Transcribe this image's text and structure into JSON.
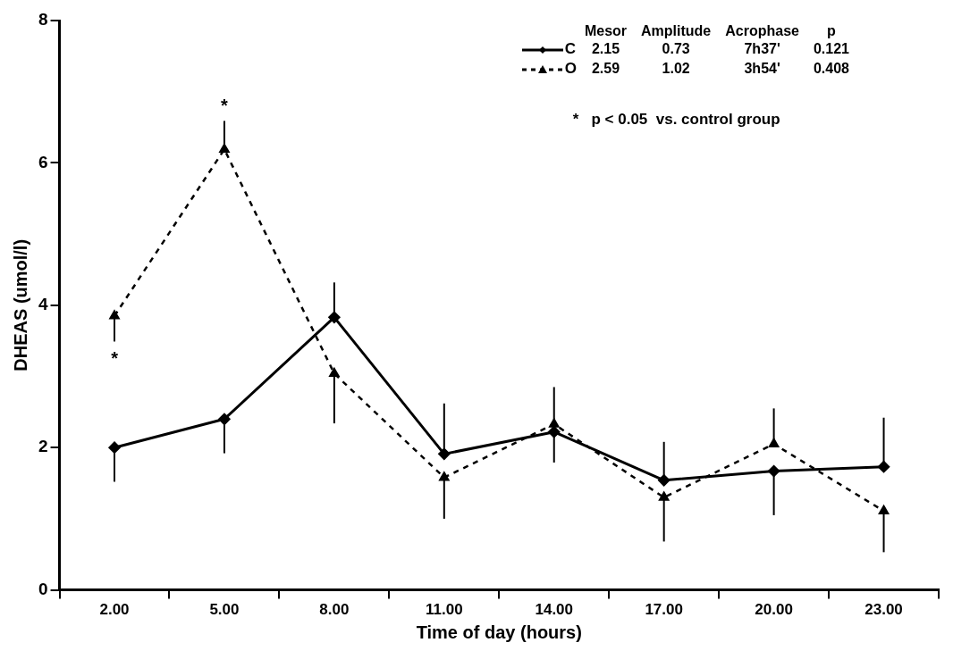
{
  "chart_data": {
    "type": "line",
    "xlabel": "Time of day (hours)",
    "ylabel": "DHEAS (umol/l)",
    "categories": [
      "2.00",
      "5.00",
      "8.00",
      "11.00",
      "14.00",
      "17.00",
      "20.00",
      "23.00"
    ],
    "ylim": [
      0,
      8
    ],
    "yticks": [
      0,
      2,
      4,
      6,
      8
    ],
    "grid": false,
    "legend": "top right",
    "series": [
      {
        "name": "C",
        "color": "#000000",
        "marker": "diamond",
        "line_style": "solid",
        "values": [
          2.0,
          2.4,
          3.83,
          1.91,
          2.22,
          1.54,
          1.67,
          1.73
        ],
        "errors": [
          [
            1.52,
            2.0
          ],
          [
            1.92,
            2.4
          ],
          [
            3.83,
            4.32
          ],
          [
            1.91,
            2.62
          ],
          [
            2.22,
            2.85
          ],
          [
            1.54,
            2.08
          ],
          [
            1.05,
            1.67
          ],
          [
            1.73,
            2.42
          ]
        ]
      },
      {
        "name": "O",
        "color": "#000000",
        "marker": "triangle",
        "line_style": "dashed",
        "values": [
          3.85,
          6.19,
          3.04,
          1.58,
          2.33,
          1.3,
          2.05,
          1.11
        ],
        "errors": [
          [
            3.49,
            3.85
          ],
          [
            6.19,
            6.59
          ],
          [
            2.34,
            3.04
          ],
          [
            1.0,
            1.58
          ],
          [
            1.79,
            2.33
          ],
          [
            0.68,
            1.3
          ],
          [
            2.05,
            2.55
          ],
          [
            0.53,
            1.11
          ]
        ]
      }
    ],
    "annotations": [
      "Mesor  Amplitude  Acrophase  p",
      "2.15  0.73  7h37'  0.121",
      "2.59  1.02  3h54'  0.408",
      "*   p < 0.05  vs. control group",
      {
        "text": "*",
        "x": "5.00",
        "y": 6.19
      },
      {
        "text": "*",
        "x": "2.00",
        "y": 3.85
      }
    ]
  }
}
